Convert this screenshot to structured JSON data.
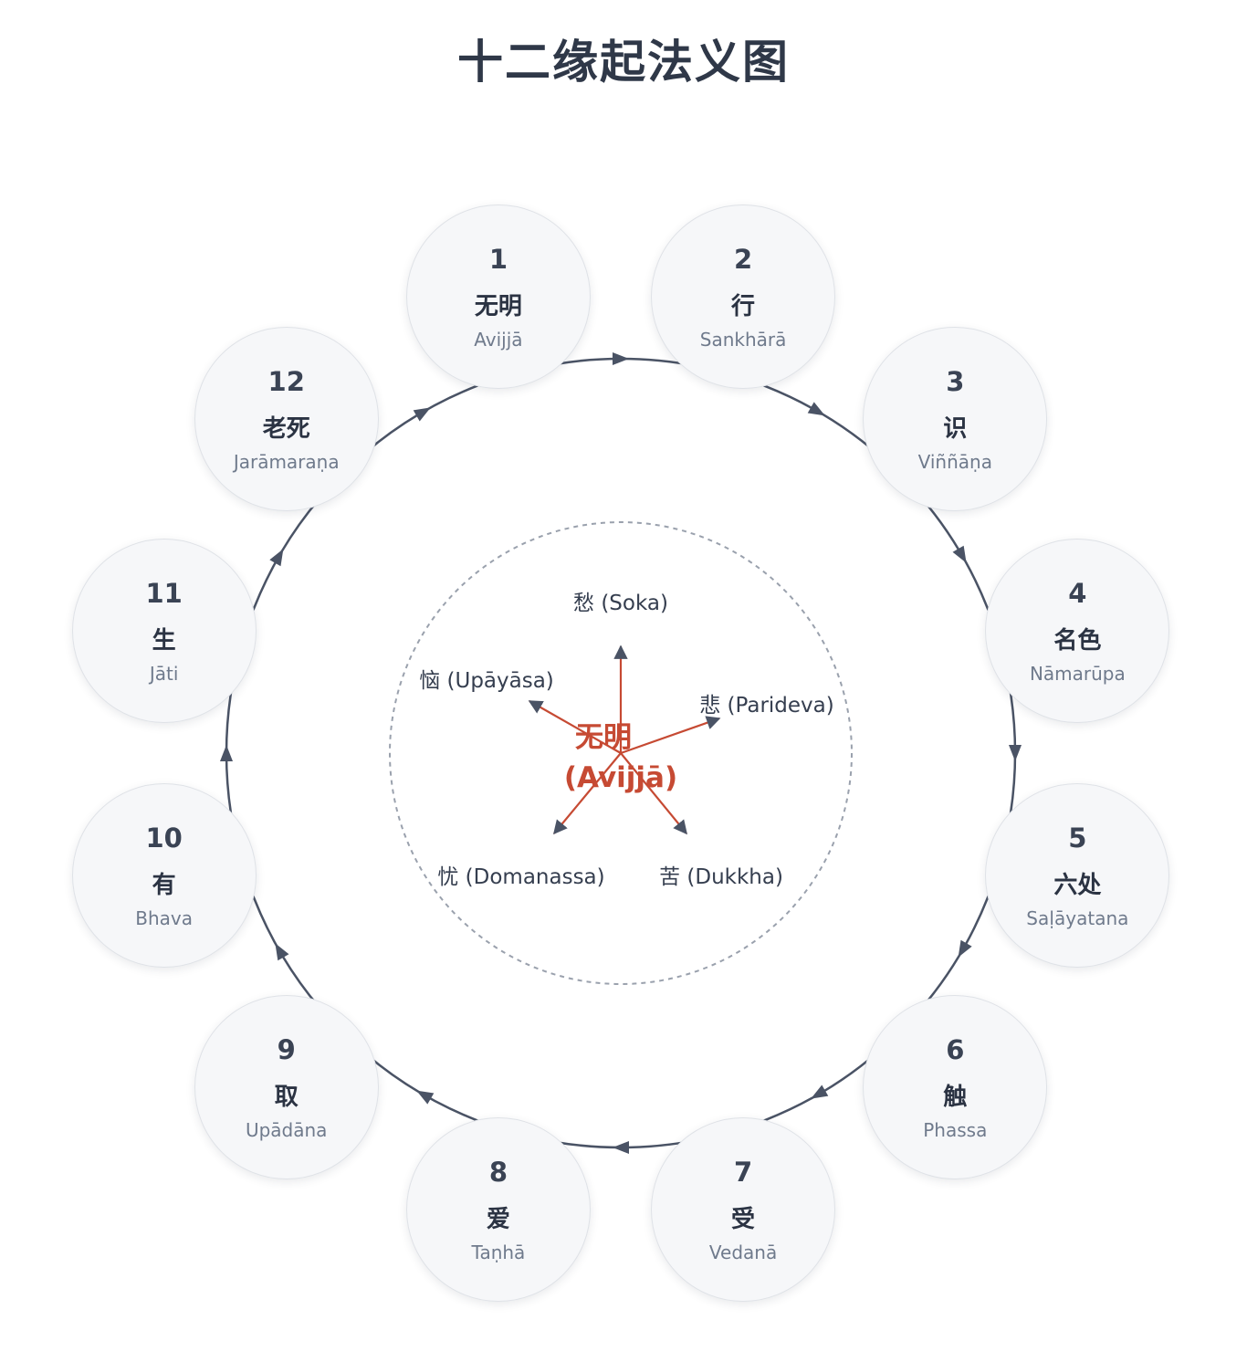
{
  "title": "十二缘起法义图",
  "colors": {
    "ring": "#4a5365",
    "center": "#c64a33",
    "node_bg": "#f6f7f9",
    "dashed": "#9aa1ad"
  },
  "links": [
    {
      "name": "无明",
      "number": "1",
      "pali": "Avijjā"
    },
    {
      "name": "行",
      "number": "2",
      "pali": "Sankhārā"
    },
    {
      "name": "识",
      "number": "3",
      "pali": "Viññāṇa"
    },
    {
      "name": "名色",
      "number": "4",
      "pali": "Nāmarūpa"
    },
    {
      "name": "六处",
      "number": "5",
      "pali": "Saḷāyatana"
    },
    {
      "name": "触",
      "number": "6",
      "pali": "Phassa"
    },
    {
      "name": "受",
      "number": "7",
      "pali": "Vedanā"
    },
    {
      "name": "爱",
      "number": "8",
      "pali": "Taṇhā"
    },
    {
      "name": "取",
      "number": "9",
      "pali": "Upādāna"
    },
    {
      "name": "有",
      "number": "10",
      "pali": "Bhava"
    },
    {
      "name": "生",
      "number": "11",
      "pali": "Jāti"
    },
    {
      "name": "老死",
      "number": "12",
      "pali": "Jarāmaraṇa"
    }
  ],
  "center": {
    "line1": "无明",
    "line2": "(Avijjā)",
    "sorrows": [
      {
        "label": "愁 (Soka)"
      },
      {
        "label": "悲 (Parideva)"
      },
      {
        "label": "苦 (Dukkha)"
      },
      {
        "label": "忧 (Domanassa)"
      },
      {
        "label": "恼 (Upāyāsa)"
      }
    ]
  }
}
